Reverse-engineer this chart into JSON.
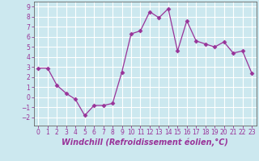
{
  "hours": [
    0,
    1,
    2,
    3,
    4,
    5,
    6,
    7,
    8,
    9,
    10,
    11,
    12,
    13,
    14,
    15,
    16,
    17,
    18,
    19,
    20,
    21,
    22,
    23
  ],
  "values": [
    2.9,
    2.9,
    1.2,
    0.4,
    -0.2,
    -1.8,
    -0.8,
    -0.8,
    -0.6,
    2.5,
    6.3,
    6.6,
    8.5,
    7.9,
    8.8,
    4.6,
    7.6,
    5.6,
    5.3,
    5.0,
    5.5,
    4.4,
    4.6,
    2.4
  ],
  "line_color": "#993399",
  "marker": "D",
  "marker_size": 2.5,
  "bg_color": "#cce8ef",
  "grid_color": "#ffffff",
  "xlabel": "Windchill (Refroidissement éolien,°C)",
  "ylim": [
    -2.8,
    9.5
  ],
  "xlim": [
    -0.5,
    23.5
  ],
  "yticks": [
    -2,
    -1,
    0,
    1,
    2,
    3,
    4,
    5,
    6,
    7,
    8,
    9
  ],
  "xticks": [
    0,
    1,
    2,
    3,
    4,
    5,
    6,
    7,
    8,
    9,
    10,
    11,
    12,
    13,
    14,
    15,
    16,
    17,
    18,
    19,
    20,
    21,
    22,
    23
  ],
  "tick_fontsize": 5.5,
  "xlabel_fontsize": 7,
  "axis_color": "#993399",
  "spine_color": "#666666"
}
